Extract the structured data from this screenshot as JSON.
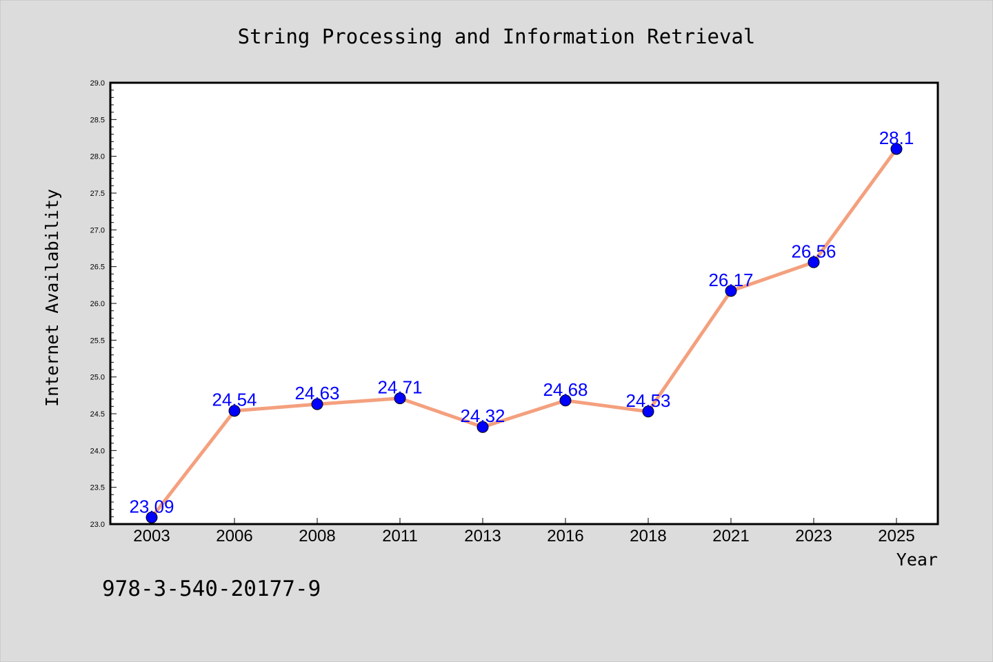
{
  "colors": {
    "background": "#dcdcdc",
    "plot_background": "#ffffff",
    "line": "#f4a07e",
    "marker": "#0000ff",
    "data_label": "#0000ff"
  },
  "footnote": "978-3-540-20177-9",
  "chart_data": {
    "type": "line",
    "title": "String Processing and Information Retrieval",
    "xlabel": "Year",
    "ylabel": "Internet Availability",
    "categories": [
      "2003",
      "2006",
      "2008",
      "2011",
      "2013",
      "2016",
      "2018",
      "2021",
      "2023",
      "2025"
    ],
    "series": [
      {
        "values": [
          23.09,
          24.54,
          24.63,
          24.71,
          24.32,
          24.68,
          24.53,
          26.17,
          26.56,
          28.1
        ],
        "labels": [
          "23.09",
          "24.54",
          "24.63",
          "24.71",
          "24.32",
          "24.68",
          "24.53",
          "26.17",
          "26.56",
          "28.1"
        ]
      }
    ],
    "ylim": [
      23.0,
      29.0
    ],
    "yticks": [
      "23.0",
      "23.5",
      "24.0",
      "24.5",
      "25.0",
      "25.5",
      "26.0",
      "26.5",
      "27.0",
      "27.5",
      "28.0",
      "28.5",
      "29.0"
    ],
    "grid": false,
    "legend": "none"
  }
}
